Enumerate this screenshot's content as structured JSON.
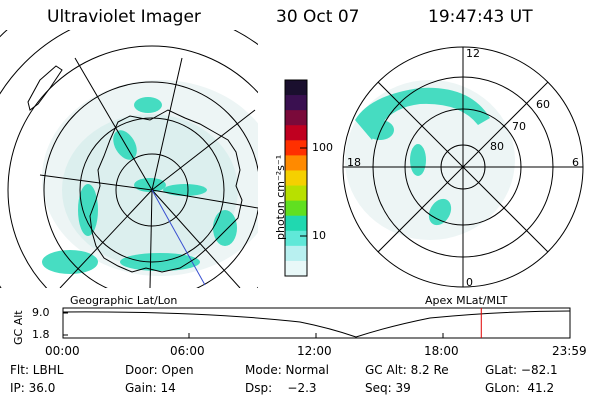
{
  "header": {
    "title": "Ultraviolet Imager",
    "date": "30 Oct 07",
    "time": "19:47:43 UT"
  },
  "colorbar": {
    "label": "photon cm⁻²s⁻¹",
    "ticks": [
      "100",
      "10"
    ],
    "colors": [
      "#1a0f2e",
      "#3a1050",
      "#7a0a3a",
      "#c00020",
      "#ff3000",
      "#ff8a00",
      "#f5d000",
      "#b8e000",
      "#60e020",
      "#20d8b0",
      "#60e8d8",
      "#b8f0f0",
      "#e8f8f8"
    ]
  },
  "left_map": {
    "caption": "Geographic Lat/Lon"
  },
  "right_map": {
    "caption": "Apex MLat/MLT",
    "mlt_labels": {
      "top": "12",
      "left": "18",
      "right": "6",
      "bottom": "0"
    },
    "lat_labels": [
      "60",
      "70",
      "80"
    ]
  },
  "timeline": {
    "ylabel": "GC Alt",
    "yticks": [
      "9.0",
      "1.8"
    ],
    "xticks": [
      "00:00",
      "06:00",
      "12:00",
      "18:00",
      "23:59"
    ],
    "marker_hour": 19.8
  },
  "info": {
    "row1": [
      "Flt: LBHL",
      "Door: Open",
      "Mode: Normal",
      "GC Alt: 8.2 Re",
      "GLat: −82.1"
    ],
    "row2": [
      "IP: 36.0",
      "Gain: 14",
      "Dsp:    −2.3",
      "Seq: 39",
      "GLon:  41.2"
    ]
  },
  "colors": {
    "aurora": "#28d8b8",
    "marker": "#e00000",
    "meridian": "#3a50d0"
  }
}
